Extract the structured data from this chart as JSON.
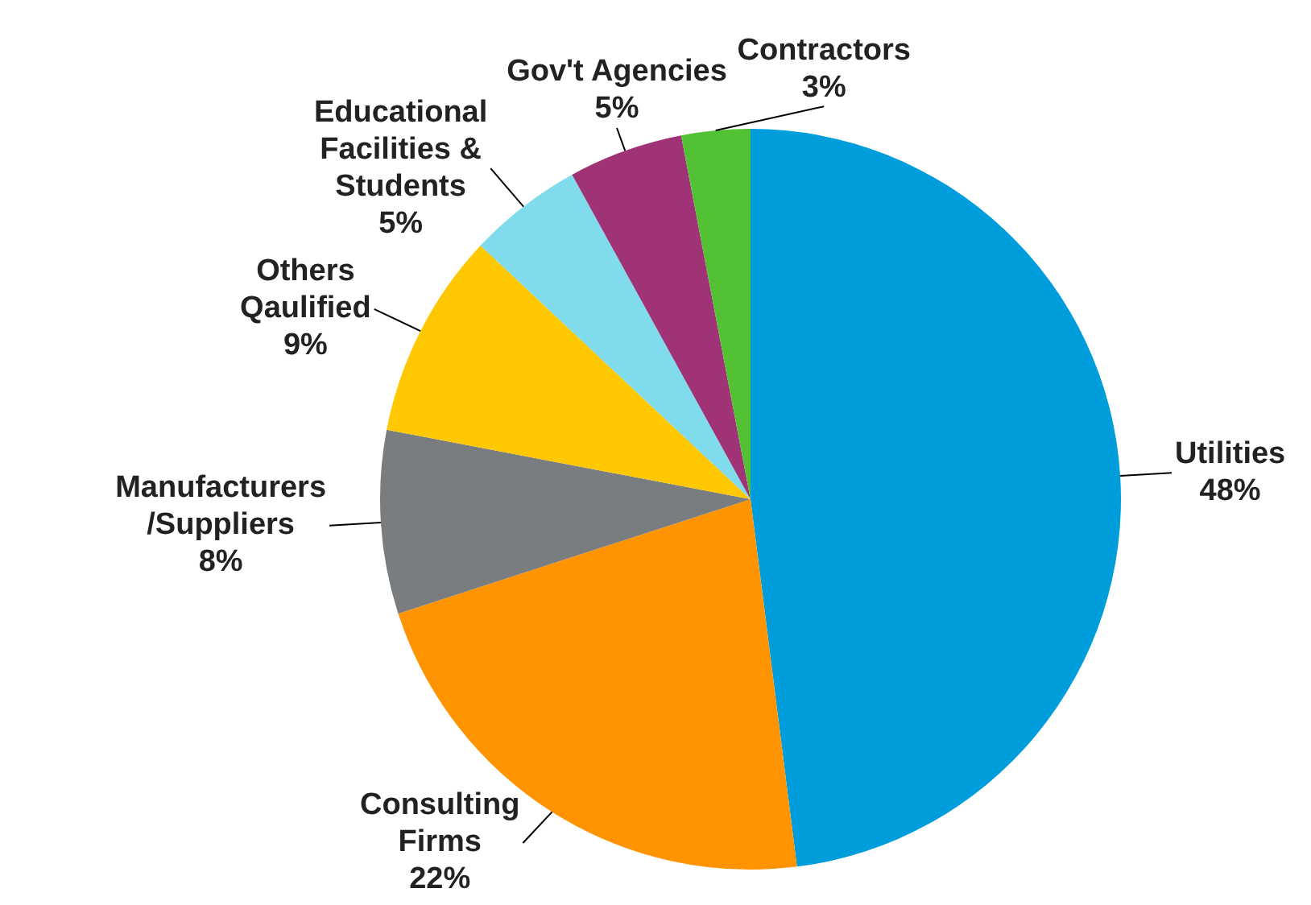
{
  "chart_data": {
    "type": "pie",
    "categories": [
      "Utilities",
      "Consulting Firms",
      "Manufacturers /Suppliers",
      "Others Qaulified",
      "Educational Facilities & Students",
      "Gov't Agencies",
      "Contractors"
    ],
    "values": [
      48,
      22,
      8,
      9,
      5,
      5,
      3
    ],
    "value_labels": [
      "48%",
      "22%",
      "8%",
      "9%",
      "5%",
      "5%",
      "3%"
    ],
    "colors": [
      "#009ddc",
      "#ff9400",
      "#797d7f",
      "#ffc800",
      "#80dbec",
      "#a03276",
      "#52c234"
    ],
    "legend": false
  }
}
